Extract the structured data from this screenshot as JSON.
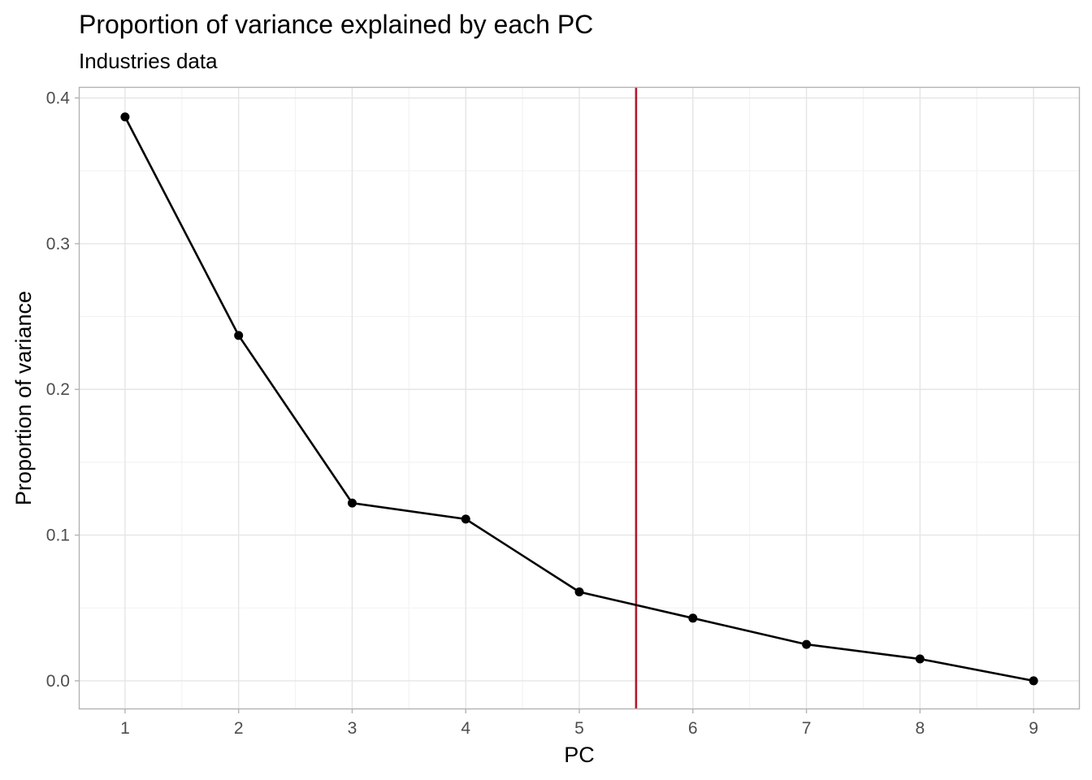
{
  "chart_data": {
    "type": "line",
    "title": "Proportion of variance explained by each PC",
    "subtitle": "Industries data",
    "xlabel": "PC",
    "ylabel": "Proportion of variance",
    "x": [
      1,
      2,
      3,
      4,
      5,
      6,
      7,
      8,
      9
    ],
    "series": [
      {
        "values": [
          0.387,
          0.237,
          0.122,
          0.111,
          0.061,
          0.043,
          0.025,
          0.015,
          0.0
        ]
      }
    ],
    "xlim": [
      0.6,
      9.4
    ],
    "ylim": [
      -0.019,
      0.407
    ],
    "x_ticks": [
      "1",
      "2",
      "3",
      "4",
      "5",
      "6",
      "7",
      "8",
      "9"
    ],
    "y_ticks": [
      "0.0",
      "0.1",
      "0.2",
      "0.3",
      "0.4"
    ],
    "vline": {
      "x": 5.5,
      "color": "#b2182b"
    },
    "grid": true,
    "legend": "none",
    "colors": {
      "line": "#000000",
      "vline": "#b2182b"
    }
  }
}
